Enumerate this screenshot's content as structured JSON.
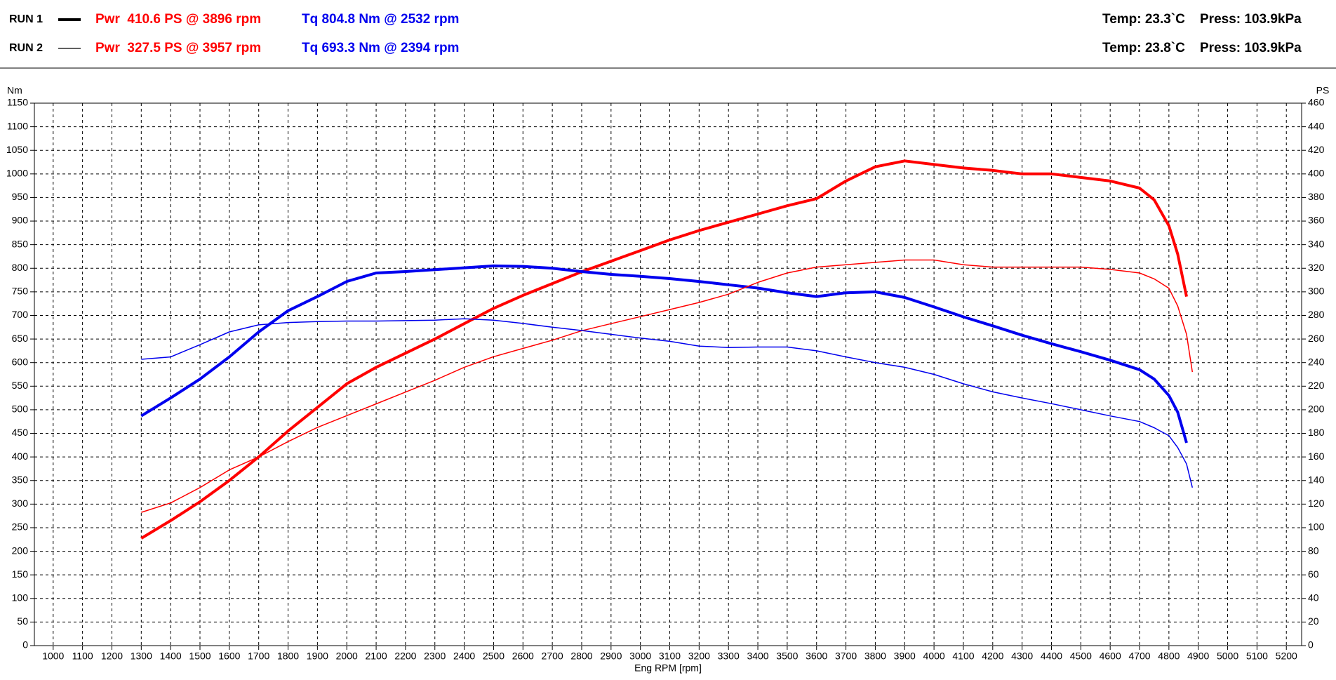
{
  "chart_data": {
    "type": "line",
    "legend": [
      {
        "label": "RUN 1",
        "power": "Pwr  410.6 PS @ 3896 rpm",
        "torque": "Tq 804.8 Nm @ 2532 rpm",
        "temp": "Temp: 23.3`C",
        "press": "Press: 103.9kPa"
      },
      {
        "label": "RUN 2",
        "power": "Pwr  327.5 PS @ 3957 rpm",
        "torque": "Tq 693.3 Nm @ 2394 rpm",
        "temp": "Temp: 23.8`C",
        "press": "Press: 103.9kPa"
      }
    ],
    "xlabel": "Eng RPM [rpm]",
    "ylabel": "Nm",
    "y2label": "PS",
    "power_color": "#ff0000",
    "torque_color": "#0000ee",
    "x": [
      1300,
      1400,
      1500,
      1600,
      1700,
      1800,
      1900,
      2000,
      2100,
      2200,
      2300,
      2400,
      2500,
      2600,
      2700,
      2800,
      2900,
      3000,
      3100,
      3200,
      3300,
      3400,
      3500,
      3600,
      3700,
      3800,
      3900,
      4000,
      4100,
      4200,
      4300,
      4400,
      4500,
      4600,
      4700,
      4750,
      4800,
      4830,
      4860,
      4880
    ],
    "series": [
      {
        "color": "#ff0000",
        "axis": "y2",
        "values": [
          91,
          106,
          122,
          140,
          160,
          182,
          202,
          222,
          236,
          248,
          260,
          273,
          286,
          297,
          307,
          317,
          326,
          335,
          344,
          352,
          359,
          366,
          373,
          379,
          394,
          406,
          411,
          408,
          405,
          403,
          400,
          400,
          397,
          394,
          388,
          378,
          356,
          332,
          296,
          null
        ]
      },
      {
        "color": "#0000ee",
        "axis": "y",
        "values": [
          487,
          525,
          565,
          612,
          665,
          710,
          740,
          772,
          790,
          793,
          797,
          801,
          805,
          804,
          800,
          793,
          787,
          783,
          778,
          772,
          765,
          758,
          748,
          740,
          748,
          750,
          738,
          718,
          697,
          678,
          658,
          640,
          623,
          605,
          585,
          565,
          530,
          495,
          430,
          null
        ]
      },
      {
        "color": "#ff0000",
        "axis": "y2",
        "values": [
          113,
          121,
          134,
          149,
          160,
          173,
          185,
          195,
          205,
          215,
          225,
          236,
          245,
          252,
          259,
          267,
          273,
          279,
          285,
          291,
          298,
          308,
          316,
          321,
          323,
          325,
          327,
          327,
          323,
          321,
          321,
          321,
          321,
          319,
          316,
          311,
          303,
          288,
          264,
          232
        ]
      },
      {
        "color": "#0000ee",
        "axis": "y",
        "values": [
          607,
          612,
          638,
          665,
          680,
          685,
          687,
          688,
          688,
          689,
          690,
          693,
          690,
          683,
          675,
          668,
          660,
          652,
          645,
          635,
          632,
          633,
          633,
          625,
          612,
          600,
          590,
          575,
          555,
          538,
          525,
          513,
          500,
          487,
          475,
          462,
          445,
          420,
          385,
          335
        ]
      }
    ],
    "xlim": [
      936,
      5252
    ],
    "xticks": [
      1000,
      1100,
      1200,
      1300,
      1400,
      1500,
      1600,
      1700,
      1800,
      1900,
      2000,
      2100,
      2200,
      2300,
      2400,
      2500,
      2600,
      2700,
      2800,
      2900,
      3000,
      3100,
      3200,
      3300,
      3400,
      3500,
      3600,
      3700,
      3800,
      3900,
      4000,
      4100,
      4200,
      4300,
      4400,
      4500,
      4600,
      4700,
      4800,
      4900,
      5000,
      5100,
      5200
    ],
    "ylim": [
      0,
      1150
    ],
    "yticks": [
      0,
      50,
      100,
      150,
      200,
      250,
      300,
      350,
      400,
      450,
      500,
      550,
      600,
      650,
      700,
      750,
      800,
      850,
      900,
      950,
      1000,
      1050,
      1100,
      1150
    ],
    "y2lim": [
      0,
      460
    ],
    "y2ticks": [
      0,
      20,
      40,
      60,
      80,
      100,
      120,
      140,
      160,
      180,
      200,
      220,
      240,
      260,
      280,
      300,
      320,
      340,
      360,
      380,
      400,
      420,
      440,
      460
    ],
    "grid": true
  }
}
